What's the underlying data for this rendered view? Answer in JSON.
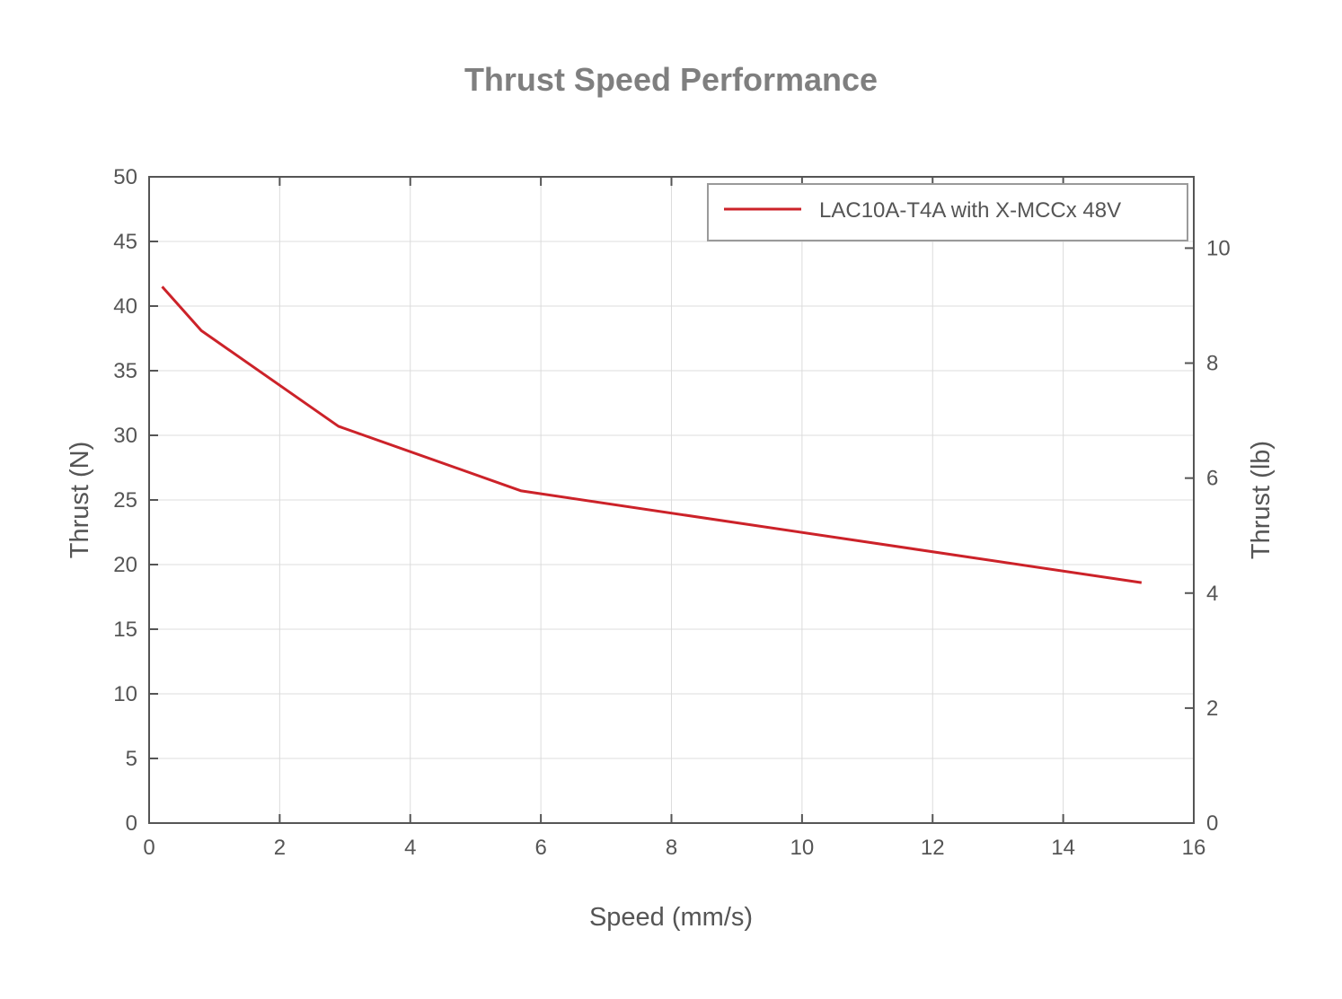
{
  "chart_data": {
    "type": "line",
    "title": "Thrust Speed Performance",
    "xlabel": "Speed (mm/s)",
    "ylabel": "Thrust (N)",
    "ylabel_right": "Thrust (lb)",
    "xlim": [
      0,
      16
    ],
    "ylim": [
      0,
      50
    ],
    "ylim_right": [
      0,
      11.24
    ],
    "x_ticks": [
      0,
      2,
      4,
      6,
      8,
      10,
      12,
      14,
      16
    ],
    "y_ticks": [
      0,
      5,
      10,
      15,
      20,
      25,
      30,
      35,
      40,
      45,
      50
    ],
    "y_right_ticks": [
      0,
      2,
      4,
      6,
      8,
      10
    ],
    "grid": true,
    "legend_position": "top-right",
    "series": [
      {
        "name": "LAC10A-T4A with X-MCCx 48V",
        "color": "#cc2229",
        "x": [
          0.2,
          0.8,
          2.9,
          5.7,
          15.2
        ],
        "y": [
          41.5,
          38.1,
          30.7,
          25.7,
          18.6
        ]
      }
    ]
  }
}
